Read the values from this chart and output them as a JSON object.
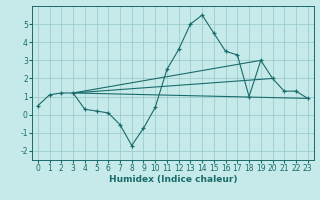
{
  "xlabel": "Humidex (Indice chaleur)",
  "ylabel": "",
  "xlim": [
    -0.5,
    23.5
  ],
  "ylim": [
    -2.5,
    6.0
  ],
  "yticks": [
    -2,
    -1,
    0,
    1,
    2,
    3,
    4,
    5
  ],
  "xticks": [
    0,
    1,
    2,
    3,
    4,
    5,
    6,
    7,
    8,
    9,
    10,
    11,
    12,
    13,
    14,
    15,
    16,
    17,
    18,
    19,
    20,
    21,
    22,
    23
  ],
  "background_color": "#c6eaea",
  "grid_color": "#9ecece",
  "line_color": "#1a6b6b",
  "main_line": {
    "x": [
      0,
      1,
      2,
      3,
      4,
      5,
      6,
      7,
      8,
      9,
      10,
      11,
      12,
      13,
      14,
      15,
      16,
      17,
      18,
      19,
      20,
      21,
      22,
      23
    ],
    "y": [
      0.5,
      1.1,
      1.2,
      1.2,
      0.3,
      0.2,
      0.1,
      -0.55,
      -1.7,
      -0.75,
      0.4,
      2.5,
      3.6,
      5.0,
      5.5,
      4.5,
      3.5,
      3.3,
      1.0,
      3.0,
      2.0,
      1.3,
      1.3,
      0.9
    ]
  },
  "straight_lines": [
    {
      "x": [
        3,
        23
      ],
      "y": [
        1.2,
        0.9
      ]
    },
    {
      "x": [
        3,
        19
      ],
      "y": [
        1.2,
        3.0
      ]
    },
    {
      "x": [
        3,
        20
      ],
      "y": [
        1.2,
        2.0
      ]
    }
  ],
  "figsize": [
    3.2,
    2.0
  ],
  "dpi": 100,
  "tick_fontsize": 5.5,
  "xlabel_fontsize": 6.5
}
